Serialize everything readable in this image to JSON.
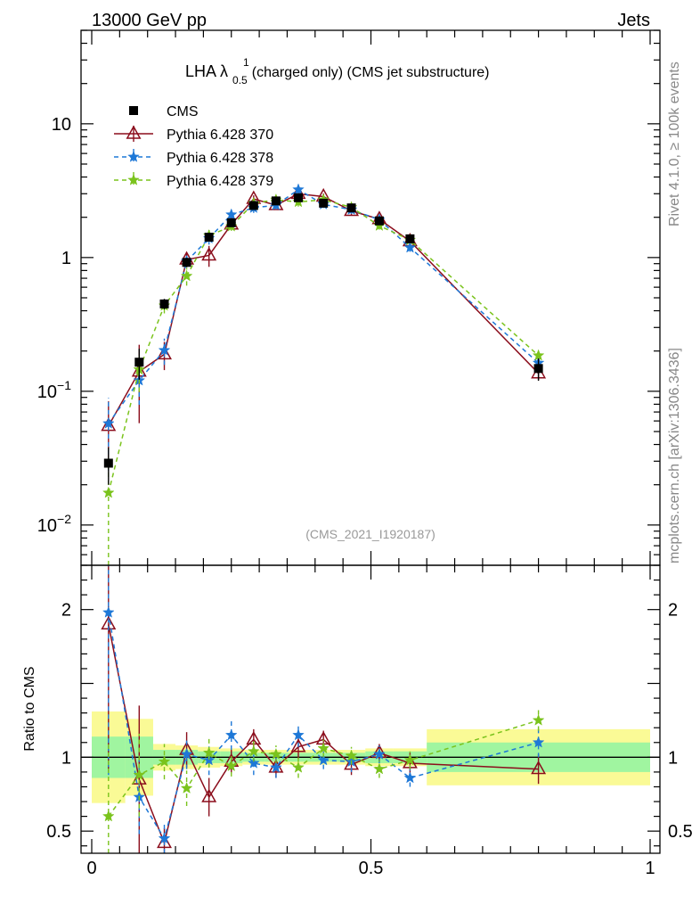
{
  "header": {
    "left": "13000 GeV pp",
    "right": "Jets"
  },
  "side_labels": {
    "rivet": "Rivet 4.1.0, ≥ 100k events",
    "mcplots": "mcplots.cern.ch [arXiv:1306.3436]"
  },
  "chart_data": {
    "type": "line",
    "title": {
      "prefix": "LHA λ",
      "superscript": "1",
      "subscript": "0.5",
      "suffix": " (charged only) (CMS jet substructure)"
    },
    "watermark": "(CMS_2021_I1920187)",
    "xlim": [
      0,
      1
    ],
    "x_ticks": [
      0,
      0.5,
      1
    ],
    "x_tick_labels": [
      "0",
      "0.5",
      "1"
    ],
    "main": {
      "yscale": "log",
      "ylim": [
        0.005,
        50
      ],
      "y_ticks": [
        {
          "value": 10,
          "label": "10"
        },
        {
          "value": 1,
          "label": "1"
        },
        {
          "value": 0.1,
          "base": "10",
          "exp": "−1"
        },
        {
          "value": 0.01,
          "base": "10",
          "exp": "−2"
        }
      ]
    },
    "ratio": {
      "ylabel": "Ratio to CMS",
      "ylim": [
        0.35,
        2.3
      ],
      "y_ticks": [
        {
          "value": 2,
          "label": "2"
        },
        {
          "value": 1,
          "label": "1"
        },
        {
          "value": 0.5,
          "label": "0.5"
        }
      ]
    },
    "bins": [
      {
        "lo": 0.0,
        "hi": 0.06,
        "x": 0.03,
        "data": 0.029,
        "stat_rel": 0.14,
        "tot_rel": 0.31
      },
      {
        "lo": 0.06,
        "hi": 0.11,
        "x": 0.085,
        "data": 0.165,
        "stat_rel": 0.14,
        "tot_rel": 0.26
      },
      {
        "lo": 0.11,
        "hi": 0.15,
        "x": 0.13,
        "data": 0.45,
        "stat_rel": 0.05,
        "tot_rel": 0.09
      },
      {
        "lo": 0.15,
        "hi": 0.19,
        "x": 0.17,
        "data": 0.92,
        "stat_rel": 0.05,
        "tot_rel": 0.08
      },
      {
        "lo": 0.19,
        "hi": 0.23,
        "x": 0.21,
        "data": 1.42,
        "stat_rel": 0.04,
        "tot_rel": 0.07
      },
      {
        "lo": 0.23,
        "hi": 0.27,
        "x": 0.25,
        "data": 1.82,
        "stat_rel": 0.04,
        "tot_rel": 0.06
      },
      {
        "lo": 0.27,
        "hi": 0.31,
        "x": 0.29,
        "data": 2.45,
        "stat_rel": 0.03,
        "tot_rel": 0.05
      },
      {
        "lo": 0.31,
        "hi": 0.35,
        "x": 0.33,
        "data": 2.65,
        "stat_rel": 0.03,
        "tot_rel": 0.05
      },
      {
        "lo": 0.35,
        "hi": 0.39,
        "x": 0.37,
        "data": 2.8,
        "stat_rel": 0.03,
        "tot_rel": 0.05
      },
      {
        "lo": 0.39,
        "hi": 0.44,
        "x": 0.415,
        "data": 2.55,
        "stat_rel": 0.03,
        "tot_rel": 0.05
      },
      {
        "lo": 0.44,
        "hi": 0.49,
        "x": 0.465,
        "data": 2.35,
        "stat_rel": 0.03,
        "tot_rel": 0.05
      },
      {
        "lo": 0.49,
        "hi": 0.54,
        "x": 0.515,
        "data": 1.88,
        "stat_rel": 0.04,
        "tot_rel": 0.06
      },
      {
        "lo": 0.54,
        "hi": 0.6,
        "x": 0.57,
        "data": 1.38,
        "stat_rel": 0.04,
        "tot_rel": 0.06
      },
      {
        "lo": 0.6,
        "hi": 1.0,
        "x": 0.8,
        "data": 0.148,
        "stat_rel": 0.1,
        "tot_rel": 0.19
      }
    ],
    "series": [
      {
        "name": "CMS",
        "kind": "data",
        "color": "#000000"
      },
      {
        "name": "Pythia 6.428 370",
        "kind": "mc",
        "color": "#8b0d1c",
        "marker": "triangle",
        "dash": "",
        "ratios": [
          1.9,
          0.85,
          0.42,
          1.05,
          0.73,
          0.97,
          1.12,
          0.93,
          1.07,
          1.12,
          0.95,
          1.03,
          0.96,
          0.92
        ],
        "ratio_errs": [
          1.0,
          0.5,
          0.1,
          0.12,
          0.13,
          0.08,
          0.07,
          0.07,
          0.08,
          0.06,
          0.07,
          0.06,
          0.07,
          0.1
        ]
      },
      {
        "name": "Pythia 6.428 378",
        "kind": "mc",
        "color": "#1e78d7",
        "marker": "star",
        "dash": "5,4",
        "ratios": [
          1.98,
          0.73,
          0.45,
          1.02,
          0.98,
          1.15,
          0.96,
          0.93,
          1.15,
          0.98,
          0.97,
          1.02,
          0.86,
          1.1
        ],
        "ratio_errs": [
          1.1,
          0.25,
          0.1,
          0.1,
          0.1,
          0.1,
          0.08,
          0.07,
          0.08,
          0.06,
          0.07,
          0.06,
          0.06,
          0.1
        ]
      },
      {
        "name": "Pythia 6.428 379",
        "kind": "mc",
        "color": "#7ac31c",
        "marker": "star",
        "dash": "5,4",
        "ratios": [
          0.6,
          0.88,
          0.97,
          0.79,
          1.03,
          0.94,
          1.04,
          1.02,
          0.93,
          1.06,
          1.01,
          0.92,
          0.98,
          1.25
        ],
        "ratio_errs": [
          0.5,
          0.28,
          0.12,
          0.12,
          0.1,
          0.07,
          0.07,
          0.06,
          0.07,
          0.06,
          0.06,
          0.06,
          0.06,
          0.07
        ]
      }
    ],
    "colors": {
      "stat_band": "#a0f5a0",
      "tot_band": "#fafa96",
      "axis": "#000000",
      "watermark": "#999999"
    }
  }
}
